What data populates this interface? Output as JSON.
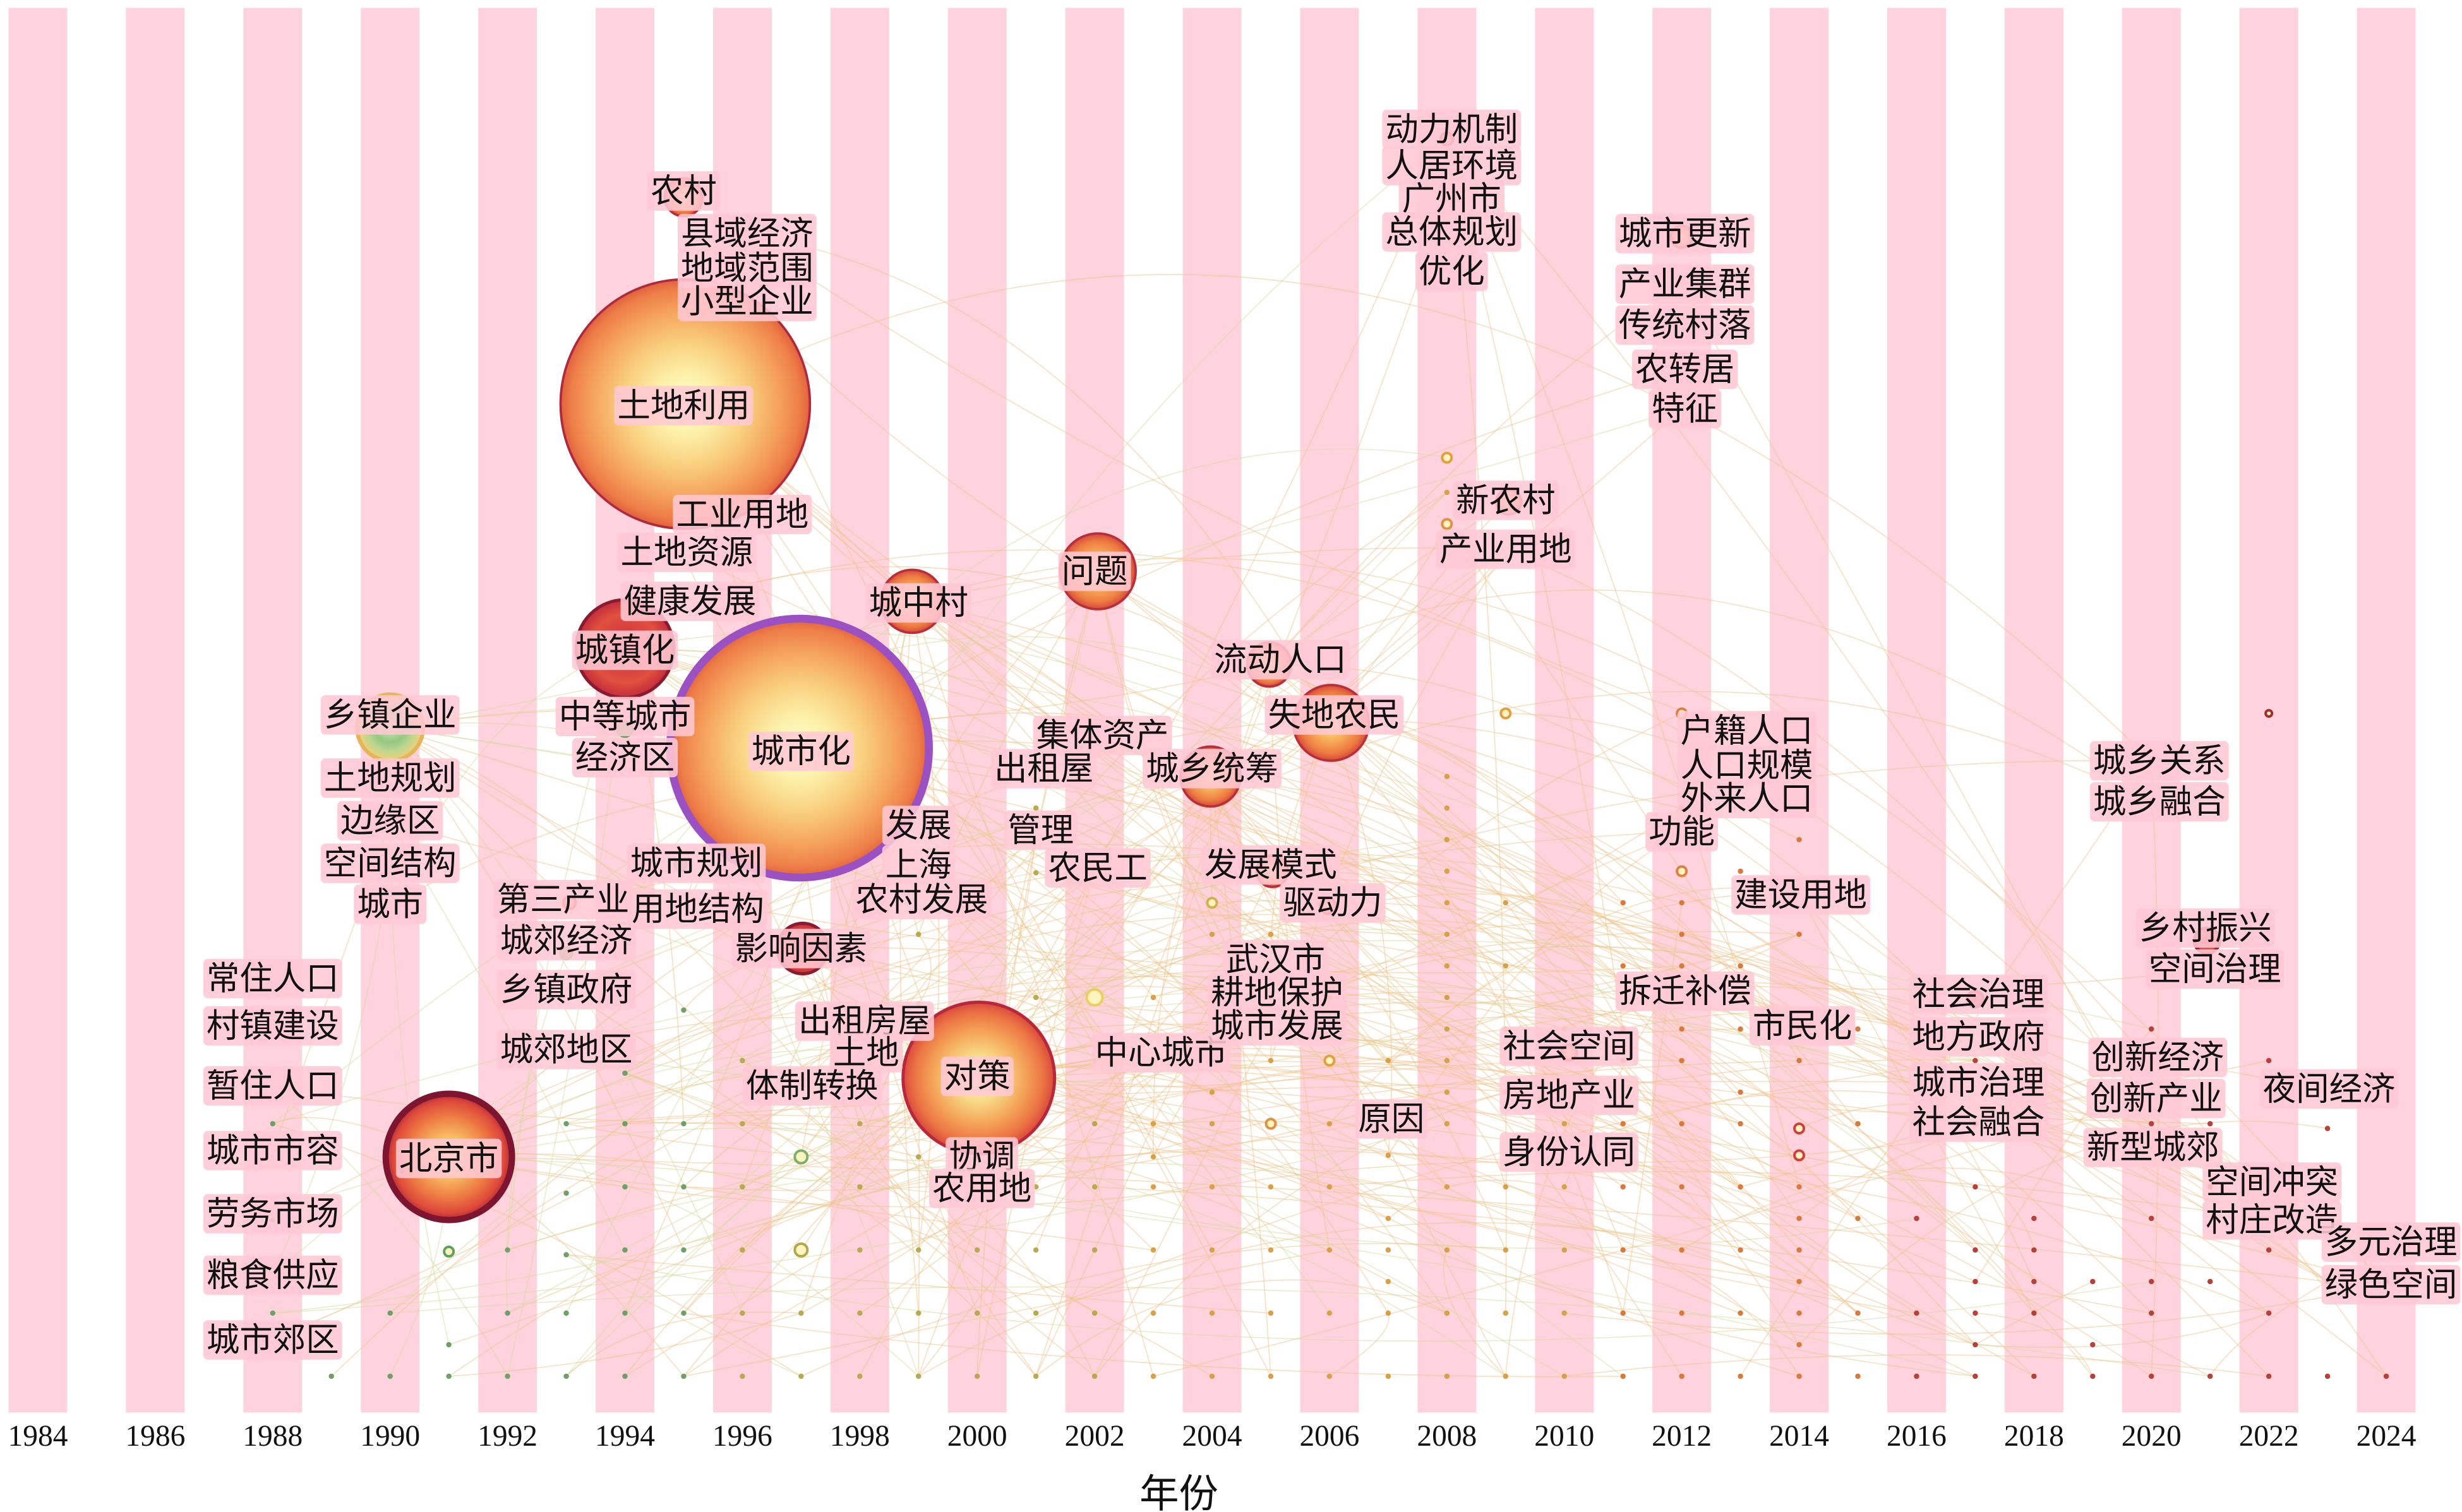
{
  "chart_data": {
    "type": "scatter",
    "title": "",
    "xlabel": "年份",
    "ylabel": "",
    "xlim": [
      1984,
      2024
    ],
    "grid": false,
    "x_ticks": [
      1984,
      1986,
      1988,
      1990,
      1992,
      1994,
      1996,
      1998,
      2000,
      2002,
      2004,
      2006,
      2008,
      2010,
      2012,
      2014,
      2016,
      2018,
      2020,
      2022,
      2024
    ],
    "nodes": [
      {
        "label": "常住人口",
        "year": 1988
      },
      {
        "label": "村镇建设",
        "year": 1988
      },
      {
        "label": "暂住人口",
        "year": 1988
      },
      {
        "label": "城市市容",
        "year": 1988
      },
      {
        "label": "劳务市场",
        "year": 1988
      },
      {
        "label": "粮食供应",
        "year": 1988
      },
      {
        "label": "城市郊区",
        "year": 1988
      },
      {
        "label": "乡镇企业",
        "year": 1990
      },
      {
        "label": "土地规划",
        "year": 1990
      },
      {
        "label": "边缘区",
        "year": 1990
      },
      {
        "label": "空间结构",
        "year": 1990
      },
      {
        "label": "城市",
        "year": 1990
      },
      {
        "label": "北京市",
        "year": 1991
      },
      {
        "label": "第三产业",
        "year": 1993
      },
      {
        "label": "城郊经济",
        "year": 1993
      },
      {
        "label": "乡镇政府",
        "year": 1993
      },
      {
        "label": "城郊地区",
        "year": 1993
      },
      {
        "label": "城镇化",
        "year": 1994
      },
      {
        "label": "中等城市",
        "year": 1994
      },
      {
        "label": "经济区",
        "year": 1994
      },
      {
        "label": "农村",
        "year": 1995
      },
      {
        "label": "县域经济",
        "year": 1996
      },
      {
        "label": "地域范围",
        "year": 1996
      },
      {
        "label": "小型企业",
        "year": 1996
      },
      {
        "label": "土地利用",
        "year": 1995
      },
      {
        "label": "工业用地",
        "year": 1996
      },
      {
        "label": "土地资源",
        "year": 1995
      },
      {
        "label": "健康发展",
        "year": 1995
      },
      {
        "label": "城市规划",
        "year": 1995
      },
      {
        "label": "用地结构",
        "year": 1995
      },
      {
        "label": "城市化",
        "year": 1997,
        "centrality_ring": true
      },
      {
        "label": "影响因素",
        "year": 1997
      },
      {
        "label": "城中村",
        "year": 1999
      },
      {
        "label": "发展",
        "year": 1999
      },
      {
        "label": "上海",
        "year": 1999
      },
      {
        "label": "农村发展",
        "year": 1999
      },
      {
        "label": "出租房屋",
        "year": 1998
      },
      {
        "label": "土地",
        "year": 1998
      },
      {
        "label": "体制转换",
        "year": 1997
      },
      {
        "label": "对策",
        "year": 2000
      },
      {
        "label": "协调",
        "year": 2000
      },
      {
        "label": "农用地",
        "year": 2000
      },
      {
        "label": "问题",
        "year": 2002
      },
      {
        "label": "集体资产",
        "year": 2002
      },
      {
        "label": "出租屋",
        "year": 2001
      },
      {
        "label": "管理",
        "year": 2001
      },
      {
        "label": "农民工",
        "year": 2002
      },
      {
        "label": "中心城市",
        "year": 2003
      },
      {
        "label": "城乡统筹",
        "year": 2004
      },
      {
        "label": "流动人口",
        "year": 2005
      },
      {
        "label": "发展模式",
        "year": 2005
      },
      {
        "label": "武汉市",
        "year": 2005
      },
      {
        "label": "耕地保护",
        "year": 2005
      },
      {
        "label": "城市发展",
        "year": 2005
      },
      {
        "label": "失地农民",
        "year": 2006
      },
      {
        "label": "驱动力",
        "year": 2006
      },
      {
        "label": "原因",
        "year": 2007
      },
      {
        "label": "动力机制",
        "year": 2008
      },
      {
        "label": "人居环境",
        "year": 2008
      },
      {
        "label": "广州市",
        "year": 2008
      },
      {
        "label": "总体规划",
        "year": 2008
      },
      {
        "label": "优化",
        "year": 2008
      },
      {
        "label": "新农村",
        "year": 2009
      },
      {
        "label": "产业用地",
        "year": 2009
      },
      {
        "label": "社会空间",
        "year": 2010
      },
      {
        "label": "房地产业",
        "year": 2010
      },
      {
        "label": "身份认同",
        "year": 2010
      },
      {
        "label": "城市更新",
        "year": 2012
      },
      {
        "label": "产业集群",
        "year": 2012
      },
      {
        "label": "传统村落",
        "year": 2012
      },
      {
        "label": "农转居",
        "year": 2012
      },
      {
        "label": "特征",
        "year": 2012
      },
      {
        "label": "户籍人口",
        "year": 2013
      },
      {
        "label": "人口规模",
        "year": 2013
      },
      {
        "label": "外来人口",
        "year": 2013
      },
      {
        "label": "功能",
        "year": 2012
      },
      {
        "label": "拆迁补偿",
        "year": 2012
      },
      {
        "label": "建设用地",
        "year": 2014
      },
      {
        "label": "市民化",
        "year": 2014
      },
      {
        "label": "社会治理",
        "year": 2017
      },
      {
        "label": "地方政府",
        "year": 2017
      },
      {
        "label": "城市治理",
        "year": 2017
      },
      {
        "label": "社会融合",
        "year": 2017
      },
      {
        "label": "城乡关系",
        "year": 2020
      },
      {
        "label": "城乡融合",
        "year": 2020
      },
      {
        "label": "乡村振兴",
        "year": 2021
      },
      {
        "label": "空间治理",
        "year": 2021
      },
      {
        "label": "创新经济",
        "year": 2020
      },
      {
        "label": "创新产业",
        "year": 2020
      },
      {
        "label": "新型城郊",
        "year": 2020
      },
      {
        "label": "夜间经济",
        "year": 2023
      },
      {
        "label": "空间冲突",
        "year": 2022
      },
      {
        "label": "村庄改造",
        "year": 2022
      },
      {
        "label": "多元治理",
        "year": 2024
      },
      {
        "label": "绿色空间",
        "year": 2024
      }
    ]
  },
  "colors": {
    "band": "#FFD3DD",
    "label_bg": "#FFC8D4",
    "link": "#F0C48C",
    "centrality_ring": "#9B51C2",
    "text": "#111111"
  }
}
